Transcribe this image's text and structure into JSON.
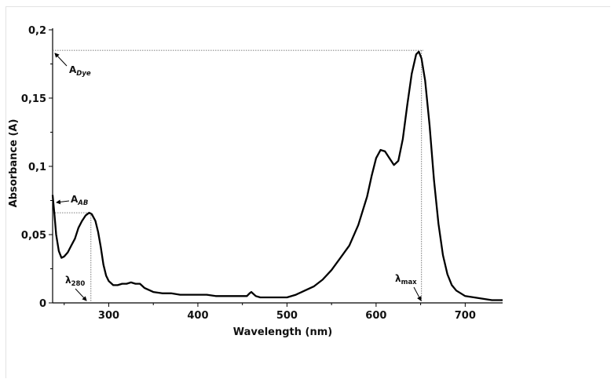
{
  "chart_data": {
    "type": "line",
    "title": "",
    "xlabel": "Wavelength (nm)",
    "ylabel": "Absorbance (A)",
    "xlim": [
      237,
      742
    ],
    "ylim": [
      0,
      0.2
    ],
    "x_ticks": [
      300,
      400,
      500,
      600,
      700
    ],
    "x_tick_labels": [
      "300",
      "400",
      "500",
      "600",
      "700"
    ],
    "y_ticks": [
      0,
      0.05,
      0.1,
      0.15,
      0.2
    ],
    "y_tick_labels": [
      "0",
      "0,05",
      "0,1",
      "0,15",
      "0,2"
    ],
    "grid": false,
    "series": [
      {
        "x": [
          237,
          239,
          241,
          244,
          247,
          250,
          254,
          258,
          262,
          266,
          270,
          274,
          278,
          281,
          285,
          288,
          291,
          294,
          297,
          300,
          305,
          310,
          315,
          320,
          325,
          330,
          335,
          340,
          350,
          360,
          370,
          380,
          390,
          400,
          410,
          420,
          430,
          440,
          450,
          455,
          458,
          460,
          465,
          470,
          480,
          490,
          500,
          510,
          520,
          530,
          540,
          550,
          560,
          570,
          580,
          590,
          595,
          600,
          605,
          610,
          615,
          620,
          625,
          630,
          635,
          640,
          645,
          648,
          651,
          655,
          660,
          665,
          670,
          675,
          680,
          685,
          690,
          695,
          700,
          710,
          720,
          730,
          742
        ],
        "y": [
          0.079,
          0.065,
          0.05,
          0.038,
          0.033,
          0.034,
          0.037,
          0.042,
          0.047,
          0.055,
          0.06,
          0.064,
          0.066,
          0.065,
          0.06,
          0.052,
          0.041,
          0.028,
          0.02,
          0.016,
          0.013,
          0.013,
          0.014,
          0.014,
          0.015,
          0.014,
          0.014,
          0.011,
          0.008,
          0.007,
          0.007,
          0.006,
          0.006,
          0.006,
          0.006,
          0.005,
          0.005,
          0.005,
          0.005,
          0.005,
          0.007,
          0.008,
          0.005,
          0.004,
          0.004,
          0.004,
          0.004,
          0.006,
          0.009,
          0.012,
          0.017,
          0.024,
          0.033,
          0.042,
          0.057,
          0.078,
          0.093,
          0.106,
          0.112,
          0.111,
          0.106,
          0.101,
          0.104,
          0.12,
          0.145,
          0.168,
          0.182,
          0.184,
          0.179,
          0.163,
          0.13,
          0.09,
          0.058,
          0.035,
          0.021,
          0.013,
          0.009,
          0.007,
          0.005,
          0.004,
          0.003,
          0.002,
          0.002
        ]
      }
    ],
    "annotations": [
      {
        "main": "A",
        "sub": "Dye",
        "x": 653,
        "y": 0.185
      },
      {
        "main": "A",
        "sub": "AB",
        "x": 280,
        "y": 0.066
      },
      {
        "main": "λ",
        "sub": "280",
        "x": 280,
        "y": 0
      },
      {
        "main": "λ",
        "sub": "max",
        "x": 651,
        "y": 0
      }
    ]
  }
}
